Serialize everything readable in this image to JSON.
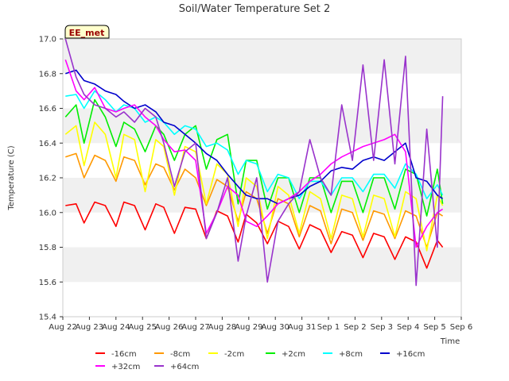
{
  "chart_data": {
    "type": "line",
    "title": "Soil/Water Temperature Set 2",
    "xlabel": "Time",
    "ylabel": "Temperature (C)",
    "ylim": [
      15.4,
      17.0
    ],
    "y_ticks": [
      "15.4",
      "15.6",
      "15.8",
      "16.0",
      "16.2",
      "16.4",
      "16.6",
      "16.8",
      "17.0"
    ],
    "xlim": [
      0,
      15
    ],
    "x_ticks": [
      "Aug 22",
      "Aug 23",
      "Aug 24",
      "Aug 25",
      "Aug 26",
      "Aug 27",
      "Aug 28",
      "Aug 29",
      "Aug 30",
      "Aug 31",
      "Sep 1",
      "Sep 2",
      "Sep 3",
      "Sep 4",
      "Sep 5",
      "Sep 6"
    ],
    "grid": "horizontal bands",
    "legend_position": "bottom",
    "annotation": "EE_met",
    "series": [
      {
        "name": "-16cm",
        "color": "#ff0000",
        "x": [
          0.1,
          0.5,
          0.8,
          1.2,
          1.6,
          2.0,
          2.3,
          2.7,
          3.1,
          3.5,
          3.8,
          4.2,
          4.6,
          5.0,
          5.4,
          5.8,
          6.2,
          6.6,
          6.9,
          7.3,
          7.7,
          8.1,
          8.5,
          8.9,
          9.3,
          9.7,
          10.1,
          10.5,
          10.9,
          11.3,
          11.7,
          12.1,
          12.5,
          12.9,
          13.3,
          13.7,
          14.1,
          14.3
        ],
        "values": [
          16.04,
          16.05,
          15.94,
          16.06,
          16.04,
          15.92,
          16.06,
          16.04,
          15.9,
          16.05,
          16.03,
          15.88,
          16.03,
          16.02,
          15.85,
          16.01,
          15.98,
          15.83,
          15.99,
          15.94,
          15.82,
          15.95,
          15.92,
          15.79,
          15.93,
          15.9,
          15.77,
          15.89,
          15.87,
          15.74,
          15.88,
          15.86,
          15.73,
          15.86,
          15.83,
          15.68,
          15.84,
          15.8
        ]
      },
      {
        "name": "-8cm",
        "color": "#ff9900",
        "x": [
          0.1,
          0.5,
          0.8,
          1.2,
          1.6,
          2.0,
          2.3,
          2.7,
          3.1,
          3.5,
          3.8,
          4.2,
          4.6,
          5.0,
          5.4,
          5.8,
          6.2,
          6.6,
          6.9,
          7.3,
          7.7,
          8.1,
          8.5,
          8.9,
          9.3,
          9.7,
          10.1,
          10.5,
          10.9,
          11.3,
          11.7,
          12.1,
          12.5,
          12.9,
          13.3,
          13.7,
          14.1,
          14.3
        ],
        "values": [
          16.32,
          16.34,
          16.2,
          16.33,
          16.3,
          16.18,
          16.32,
          16.3,
          16.16,
          16.28,
          16.26,
          16.13,
          16.25,
          16.2,
          16.04,
          16.19,
          16.15,
          15.95,
          16.12,
          16.08,
          15.88,
          16.08,
          16.05,
          15.86,
          16.04,
          16.01,
          15.82,
          16.02,
          16.0,
          15.84,
          16.01,
          15.99,
          15.85,
          16.01,
          15.98,
          15.8,
          16.0,
          15.98
        ]
      },
      {
        "name": "-2cm",
        "color": "#ffff00",
        "x": [
          0.1,
          0.5,
          0.8,
          1.2,
          1.6,
          2.0,
          2.3,
          2.7,
          3.1,
          3.5,
          3.8,
          4.2,
          4.6,
          5.0,
          5.4,
          5.8,
          6.2,
          6.6,
          6.9,
          7.3,
          7.7,
          8.1,
          8.5,
          8.9,
          9.3,
          9.7,
          10.1,
          10.5,
          10.9,
          11.3,
          11.7,
          12.1,
          12.5,
          12.9,
          13.3,
          13.7,
          14.1,
          14.3
        ],
        "values": [
          16.45,
          16.5,
          16.27,
          16.52,
          16.45,
          16.2,
          16.45,
          16.42,
          16.12,
          16.42,
          16.38,
          16.1,
          16.38,
          16.35,
          16.05,
          16.28,
          16.22,
          15.92,
          16.2,
          16.15,
          15.85,
          16.15,
          16.1,
          15.88,
          16.12,
          16.08,
          15.85,
          16.1,
          16.08,
          15.86,
          16.1,
          16.08,
          15.86,
          16.12,
          16.08,
          15.78,
          16.1,
          16.04
        ]
      },
      {
        "name": "+2cm",
        "color": "#00ee00",
        "x": [
          0.1,
          0.5,
          0.8,
          1.2,
          1.6,
          2.0,
          2.3,
          2.7,
          3.1,
          3.5,
          3.8,
          4.2,
          4.6,
          5.0,
          5.4,
          5.8,
          6.2,
          6.6,
          6.9,
          7.3,
          7.7,
          8.1,
          8.5,
          8.9,
          9.3,
          9.7,
          10.1,
          10.5,
          10.9,
          11.3,
          11.7,
          12.1,
          12.5,
          12.9,
          13.3,
          13.7,
          14.1,
          14.3
        ],
        "values": [
          16.55,
          16.62,
          16.4,
          16.65,
          16.55,
          16.38,
          16.52,
          16.48,
          16.35,
          16.5,
          16.45,
          16.3,
          16.45,
          16.5,
          16.25,
          16.42,
          16.45,
          16.05,
          16.3,
          16.3,
          16.02,
          16.2,
          16.2,
          16.0,
          16.2,
          16.2,
          16.0,
          16.18,
          16.18,
          16.0,
          16.2,
          16.2,
          16.02,
          16.25,
          16.22,
          15.98,
          16.25,
          16.05
        ]
      },
      {
        "name": "+8cm",
        "color": "#00ffff",
        "x": [
          0.1,
          0.5,
          0.8,
          1.2,
          1.6,
          2.0,
          2.3,
          2.7,
          3.1,
          3.5,
          3.8,
          4.2,
          4.6,
          5.0,
          5.4,
          5.8,
          6.2,
          6.6,
          6.9,
          7.3,
          7.7,
          8.1,
          8.5,
          8.9,
          9.3,
          9.7,
          10.1,
          10.5,
          10.9,
          11.3,
          11.7,
          12.1,
          12.5,
          12.9,
          13.3,
          13.7,
          14.1,
          14.3
        ],
        "values": [
          16.67,
          16.68,
          16.6,
          16.7,
          16.65,
          16.58,
          16.62,
          16.6,
          16.52,
          16.55,
          16.52,
          16.45,
          16.5,
          16.48,
          16.38,
          16.4,
          16.36,
          16.22,
          16.3,
          16.28,
          16.12,
          16.22,
          16.2,
          16.08,
          16.18,
          16.18,
          16.1,
          16.2,
          16.2,
          16.12,
          16.22,
          16.22,
          16.14,
          16.28,
          16.22,
          16.08,
          16.16,
          16.1
        ]
      },
      {
        "name": "+16cm",
        "color": "#0000cc",
        "x": [
          0.1,
          0.5,
          0.8,
          1.2,
          1.6,
          2.0,
          2.3,
          2.7,
          3.1,
          3.5,
          3.8,
          4.2,
          4.6,
          5.0,
          5.4,
          5.8,
          6.2,
          6.6,
          6.9,
          7.3,
          7.7,
          8.1,
          8.5,
          8.9,
          9.3,
          9.7,
          10.1,
          10.5,
          10.9,
          11.3,
          11.7,
          12.1,
          12.5,
          12.9,
          13.3,
          13.7,
          14.1,
          14.3
        ],
        "values": [
          16.8,
          16.82,
          16.76,
          16.74,
          16.7,
          16.68,
          16.64,
          16.6,
          16.62,
          16.58,
          16.52,
          16.5,
          16.45,
          16.4,
          16.34,
          16.3,
          16.22,
          16.15,
          16.1,
          16.08,
          16.08,
          16.05,
          16.08,
          16.1,
          16.15,
          16.18,
          16.24,
          16.26,
          16.25,
          16.3,
          16.32,
          16.3,
          16.35,
          16.4,
          16.2,
          16.18,
          16.1,
          16.08
        ]
      },
      {
        "name": "+32cm",
        "color": "#ff00ff",
        "x": [
          0.1,
          0.5,
          0.8,
          1.2,
          1.6,
          2.0,
          2.3,
          2.7,
          3.1,
          3.5,
          3.8,
          4.2,
          4.6,
          5.0,
          5.4,
          5.8,
          6.2,
          6.6,
          6.9,
          7.3,
          7.7,
          8.1,
          8.5,
          8.9,
          9.3,
          9.7,
          10.1,
          10.5,
          10.9,
          11.3,
          11.7,
          12.1,
          12.5,
          12.9,
          13.3,
          13.7,
          14.1,
          14.3
        ],
        "values": [
          16.88,
          16.7,
          16.65,
          16.72,
          16.6,
          16.58,
          16.6,
          16.62,
          16.55,
          16.5,
          16.42,
          16.35,
          16.36,
          16.3,
          15.88,
          16.0,
          16.15,
          16.1,
          15.95,
          15.92,
          15.98,
          16.05,
          16.08,
          16.12,
          16.18,
          16.22,
          16.28,
          16.32,
          16.35,
          16.38,
          16.4,
          16.42,
          16.45,
          16.35,
          15.8,
          15.92,
          16.0,
          16.02
        ]
      },
      {
        "name": "+64cm",
        "color": "#9933cc",
        "x": [
          0.1,
          0.5,
          0.8,
          1.2,
          1.6,
          2.0,
          2.3,
          2.7,
          3.1,
          3.5,
          3.8,
          4.2,
          4.6,
          5.0,
          5.4,
          5.8,
          6.2,
          6.6,
          6.9,
          7.3,
          7.7,
          8.1,
          8.5,
          8.9,
          9.3,
          9.7,
          10.1,
          10.5,
          10.9,
          11.3,
          11.7,
          12.1,
          12.5,
          12.9,
          13.3,
          13.7,
          14.1,
          14.3
        ],
        "values": [
          17.0,
          16.78,
          16.68,
          16.62,
          16.6,
          16.55,
          16.58,
          16.52,
          16.6,
          16.55,
          16.4,
          16.15,
          16.35,
          16.4,
          15.85,
          16.0,
          16.2,
          15.72,
          15.98,
          16.2,
          15.6,
          15.95,
          16.05,
          16.12,
          16.42,
          16.2,
          16.1,
          16.62,
          16.3,
          16.85,
          16.3,
          16.88,
          16.28,
          16.9,
          15.58,
          16.48,
          15.8,
          16.67
        ]
      }
    ]
  }
}
